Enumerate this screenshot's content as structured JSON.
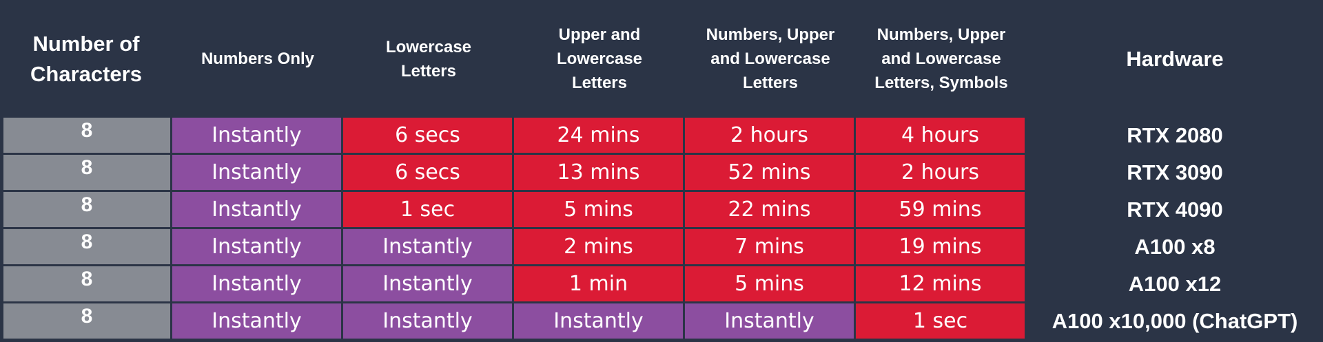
{
  "colors": {
    "background": "#2b3446",
    "characters_cell": "#878b93",
    "instantly": "#8c4ea0",
    "timed": "#db1b35",
    "text": "#ffffff"
  },
  "chart_data": {
    "type": "table",
    "columns": [
      "Number of\nCharacters",
      "Numbers Only",
      "Lowercase\nLetters",
      "Upper and\nLowercase\nLetters",
      "Numbers, Upper\nand Lowercase\nLetters",
      "Numbers, Upper\nand Lowercase\nLetters, Symbols",
      "Hardware"
    ],
    "rows": [
      {
        "characters": "8",
        "values": [
          "Instantly",
          "6 secs",
          "24 mins",
          "2 hours",
          "4 hours"
        ],
        "hardware": "RTX 2080"
      },
      {
        "characters": "8",
        "values": [
          "Instantly",
          "6 secs",
          "13 mins",
          "52 mins",
          "2 hours"
        ],
        "hardware": "RTX 3090"
      },
      {
        "characters": "8",
        "values": [
          "Instantly",
          "1 sec",
          "5 mins",
          "22 mins",
          "59 mins"
        ],
        "hardware": "RTX 4090"
      },
      {
        "characters": "8",
        "values": [
          "Instantly",
          "Instantly",
          "2 mins",
          "7 mins",
          "19 mins"
        ],
        "hardware": "A100 x8"
      },
      {
        "characters": "8",
        "values": [
          "Instantly",
          "Instantly",
          "1 min",
          "5 mins",
          "12 mins"
        ],
        "hardware": "A100 x12"
      },
      {
        "characters": "8",
        "values": [
          "Instantly",
          "Instantly",
          "Instantly",
          "Instantly",
          "1 sec"
        ],
        "hardware": "A100 x10,000 (ChatGPT)"
      }
    ]
  }
}
